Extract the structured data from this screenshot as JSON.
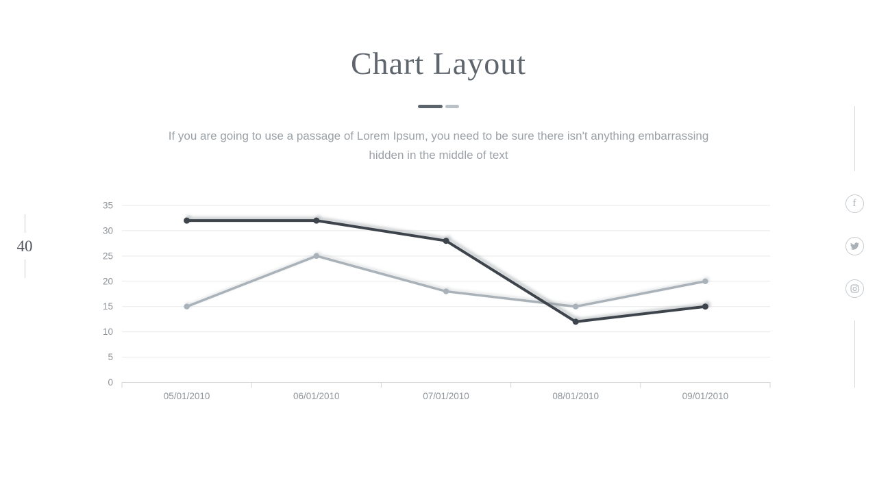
{
  "slide": {
    "title": "Chart Layout",
    "subtitle_line1": "If you are going to use a passage of Lorem Ipsum, you need to be sure there isn't anything embarrassing",
    "subtitle_line2": "hidden in the middle of text",
    "page_number": "40"
  },
  "divider": {
    "dark_color": "#5c646b",
    "light_color": "#bac1c7"
  },
  "social": {
    "items": [
      {
        "name": "facebook"
      },
      {
        "name": "twitter"
      },
      {
        "name": "instagram"
      }
    ],
    "circle_border_color": "#c5cbd0",
    "glyph_color": "#a9b0b6"
  },
  "chart_data": {
    "type": "line",
    "categories": [
      "05/01/2010",
      "06/01/2010",
      "07/01/2010",
      "08/01/2010",
      "09/01/2010"
    ],
    "series": [
      {
        "name": "dark",
        "color": "#3e444b",
        "values": [
          32,
          32,
          28,
          12,
          15
        ]
      },
      {
        "name": "light",
        "color": "#aab2b9",
        "values": [
          15,
          25,
          18,
          15,
          20
        ]
      }
    ],
    "ylim": [
      0,
      35
    ],
    "yticks": [
      0,
      5,
      10,
      15,
      20,
      25,
      30,
      35
    ],
    "grid": true,
    "legend": "none",
    "gridline_color": "#e7e9ea",
    "axis_color": "#d2d5d8",
    "label_color": "#8d9398"
  }
}
